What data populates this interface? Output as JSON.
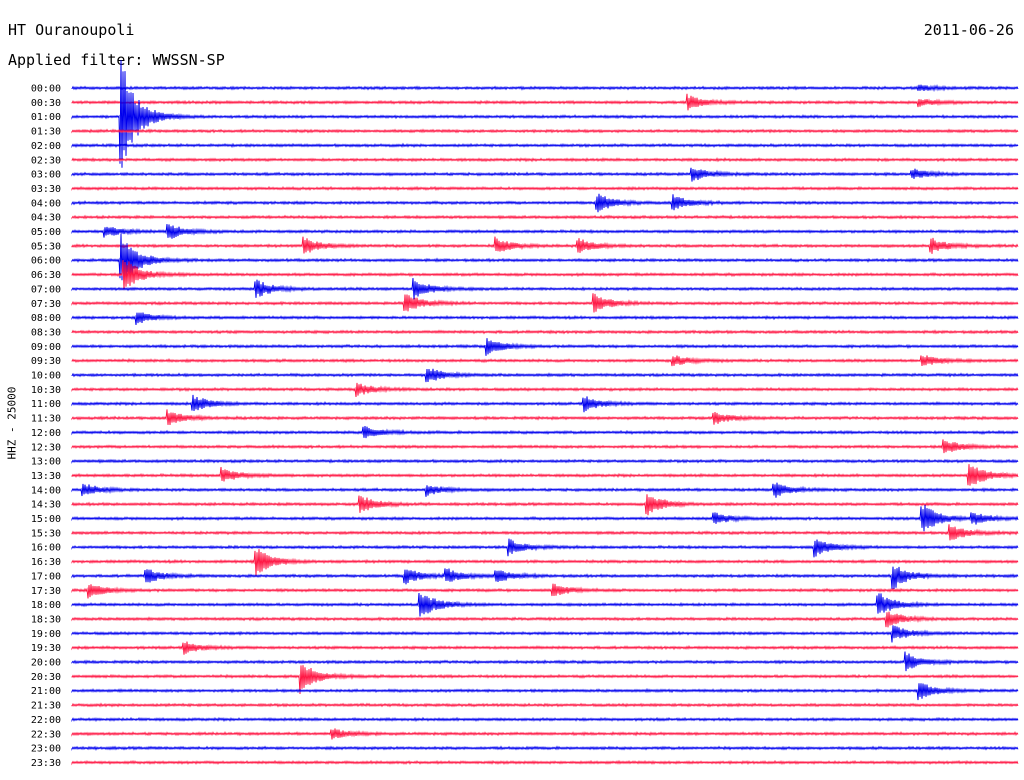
{
  "header": {
    "station": "HT Ouranoupoli",
    "date": "2011-06-26",
    "filter": "Applied filter: WWSSN-SP"
  },
  "axis_label": "HHZ - 25000",
  "colors": {
    "even_rows": "#0000ee",
    "odd_rows": "#ff1744"
  },
  "chart_data": {
    "type": "line",
    "description_kind": "helicorder",
    "row_labels": [
      "00:00",
      "00:30",
      "01:00",
      "01:30",
      "02:00",
      "02:30",
      "03:00",
      "03:30",
      "04:00",
      "04:30",
      "05:00",
      "05:30",
      "06:00",
      "06:30",
      "07:00",
      "07:30",
      "08:00",
      "08:30",
      "09:00",
      "09:30",
      "10:00",
      "10:30",
      "11:00",
      "11:30",
      "12:00",
      "12:30",
      "13:00",
      "13:30",
      "14:00",
      "14:30",
      "15:00",
      "15:30",
      "16:00",
      "16:30",
      "17:00",
      "17:30",
      "18:00",
      "18:30",
      "19:00",
      "19:30",
      "20:00",
      "20:30",
      "21:00",
      "21:30",
      "22:00",
      "22:30",
      "23:00",
      "23:30"
    ],
    "row_minutes": 30,
    "events": [
      {
        "row": 0,
        "minute": 26.8,
        "amp": 0.5
      },
      {
        "row": 1,
        "minute": 19.5,
        "amp": 1.1
      },
      {
        "row": 1,
        "minute": 26.8,
        "amp": 0.6
      },
      {
        "row": 2,
        "minute": 1.5,
        "amp": 9.5
      },
      {
        "row": 6,
        "minute": 19.6,
        "amp": 1.2
      },
      {
        "row": 6,
        "minute": 26.6,
        "amp": 0.8
      },
      {
        "row": 8,
        "minute": 16.6,
        "amp": 1.6
      },
      {
        "row": 8,
        "minute": 19.0,
        "amp": 1.2
      },
      {
        "row": 10,
        "minute": 1.0,
        "amp": 0.9
      },
      {
        "row": 10,
        "minute": 3.0,
        "amp": 1.3
      },
      {
        "row": 11,
        "minute": 7.3,
        "amp": 1.3
      },
      {
        "row": 11,
        "minute": 13.4,
        "amp": 1.2
      },
      {
        "row": 11,
        "minute": 16.0,
        "amp": 1.2
      },
      {
        "row": 11,
        "minute": 27.2,
        "amp": 1.2
      },
      {
        "row": 12,
        "minute": 1.5,
        "amp": 4.5
      },
      {
        "row": 13,
        "minute": 1.6,
        "amp": 2.8
      },
      {
        "row": 14,
        "minute": 5.8,
        "amp": 1.4
      },
      {
        "row": 14,
        "minute": 10.8,
        "amp": 1.6
      },
      {
        "row": 15,
        "minute": 10.5,
        "amp": 1.6
      },
      {
        "row": 15,
        "minute": 16.5,
        "amp": 1.5
      },
      {
        "row": 16,
        "minute": 2.0,
        "amp": 1.0
      },
      {
        "row": 18,
        "minute": 13.1,
        "amp": 1.3
      },
      {
        "row": 19,
        "minute": 19.0,
        "amp": 0.9
      },
      {
        "row": 19,
        "minute": 26.9,
        "amp": 1.0
      },
      {
        "row": 20,
        "minute": 11.2,
        "amp": 1.3
      },
      {
        "row": 21,
        "minute": 9.0,
        "amp": 1.0
      },
      {
        "row": 22,
        "minute": 3.8,
        "amp": 1.3
      },
      {
        "row": 22,
        "minute": 16.2,
        "amp": 1.2
      },
      {
        "row": 23,
        "minute": 3.0,
        "amp": 1.2
      },
      {
        "row": 23,
        "minute": 20.3,
        "amp": 1.0
      },
      {
        "row": 24,
        "minute": 9.2,
        "amp": 1.1
      },
      {
        "row": 25,
        "minute": 27.6,
        "amp": 1.2
      },
      {
        "row": 27,
        "minute": 4.7,
        "amp": 1.2
      },
      {
        "row": 27,
        "minute": 28.4,
        "amp": 2.2
      },
      {
        "row": 28,
        "minute": 0.3,
        "amp": 1.0
      },
      {
        "row": 28,
        "minute": 11.2,
        "amp": 0.9
      },
      {
        "row": 28,
        "minute": 22.2,
        "amp": 1.3
      },
      {
        "row": 29,
        "minute": 9.1,
        "amp": 1.4
      },
      {
        "row": 29,
        "minute": 18.2,
        "amp": 1.8
      },
      {
        "row": 30,
        "minute": 20.3,
        "amp": 1.0
      },
      {
        "row": 30,
        "minute": 26.9,
        "amp": 2.5
      },
      {
        "row": 30,
        "minute": 28.5,
        "amp": 1.0
      },
      {
        "row": 31,
        "minute": 27.8,
        "amp": 1.3
      },
      {
        "row": 32,
        "minute": 13.8,
        "amp": 1.3
      },
      {
        "row": 32,
        "minute": 23.5,
        "amp": 1.5
      },
      {
        "row": 33,
        "minute": 5.8,
        "amp": 2.2
      },
      {
        "row": 34,
        "minute": 2.3,
        "amp": 1.2
      },
      {
        "row": 34,
        "minute": 10.5,
        "amp": 1.3
      },
      {
        "row": 34,
        "minute": 11.8,
        "amp": 1.2
      },
      {
        "row": 34,
        "minute": 13.4,
        "amp": 1.1
      },
      {
        "row": 34,
        "minute": 26.0,
        "amp": 2.0
      },
      {
        "row": 35,
        "minute": 0.5,
        "amp": 1.1
      },
      {
        "row": 35,
        "minute": 15.2,
        "amp": 1.0
      },
      {
        "row": 36,
        "minute": 11.0,
        "amp": 2.2
      },
      {
        "row": 36,
        "minute": 25.5,
        "amp": 2.0
      },
      {
        "row": 37,
        "minute": 25.8,
        "amp": 1.3
      },
      {
        "row": 38,
        "minute": 26.0,
        "amp": 1.2
      },
      {
        "row": 39,
        "minute": 3.5,
        "amp": 1.0
      },
      {
        "row": 40,
        "minute": 26.4,
        "amp": 1.5
      },
      {
        "row": 41,
        "minute": 7.2,
        "amp": 2.5
      },
      {
        "row": 42,
        "minute": 26.8,
        "amp": 1.4
      },
      {
        "row": 45,
        "minute": 8.2,
        "amp": 0.8
      }
    ]
  }
}
